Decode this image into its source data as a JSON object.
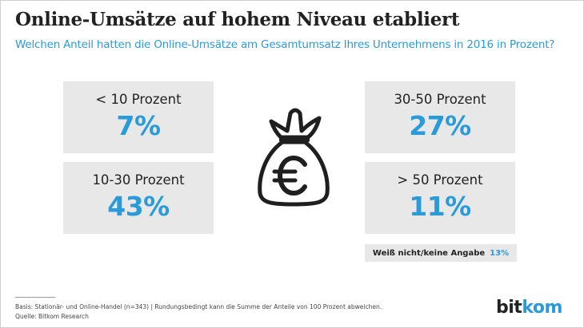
{
  "title": "Online-Umsätze auf hohem Niveau etabliert",
  "subtitle": "Welchen Anteil hatten die Online-Umsätze am Gesamtumsatz Ihres Unternehmens in 2016 in Prozent?",
  "chart_data": {
    "type": "table",
    "title": "Online-Umsätze auf hohem Niveau etabliert",
    "subtitle": "Welchen Anteil hatten die Online-Umsätze am Gesamtumsatz Ihres Unternehmens in 2016 in Prozent?",
    "categories": [
      "< 10 Prozent",
      "10-30 Prozent",
      "30-50 Prozent",
      "> 50 Prozent",
      "Weiß nicht/keine Angabe"
    ],
    "values": [
      7,
      43,
      27,
      11,
      13
    ],
    "value_labels": [
      "7%",
      "43%",
      "27%",
      "11%",
      "13%"
    ],
    "unit": "%"
  },
  "boxes": [
    {
      "label": "< 10 Prozent",
      "value": "7%"
    },
    {
      "label": "10-30 Prozent",
      "value": "43%"
    },
    {
      "label": "30-50 Prozent",
      "value": "27%"
    },
    {
      "label": "> 50 Prozent",
      "value": "11%"
    }
  ],
  "no_answer": {
    "label": "Weiß nicht/keine Angabe",
    "value": "13%"
  },
  "icon": "money-bag-euro-icon",
  "footer": {
    "basis": "Basis: Stationär- und Online-Handel (n=343) | Rundungsbedingt kann die Summe der Anteile von 100 Prozent abweichen.",
    "source": "Quelle: Bitkom Research"
  },
  "logo": {
    "part1": "bit",
    "part2": "kom"
  },
  "colors": {
    "accent": "#2a9bd8",
    "box": "#e8e8e8",
    "text": "#222222"
  }
}
